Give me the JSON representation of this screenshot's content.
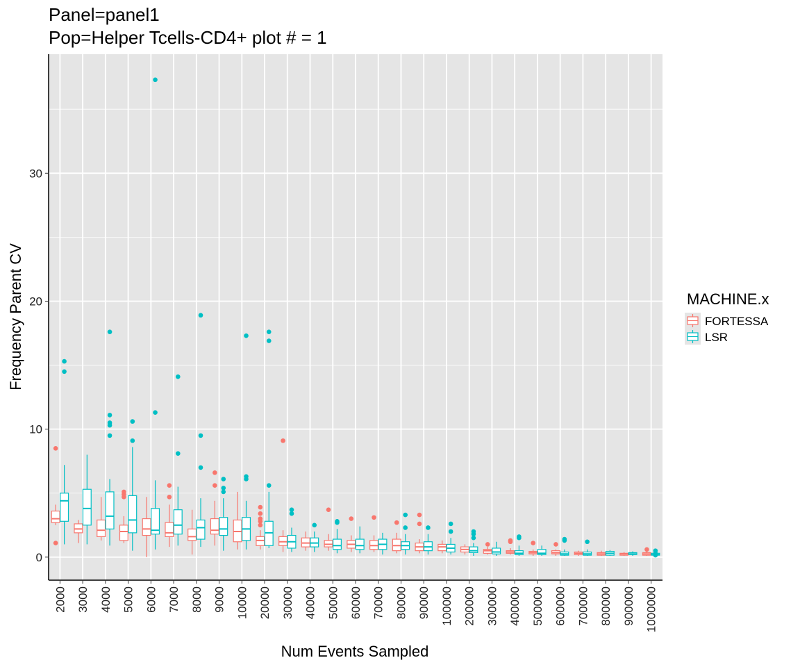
{
  "title_line1": "Panel=panel1",
  "title_line2": "Pop=Helper Tcells-CD4+ plot # = 1",
  "colors": {
    "panel_bg": "#e5e5e5",
    "grid": "#ffffff",
    "FORTESSA": "#f8766d",
    "LSR": "#00bfc4"
  },
  "chart_data": {
    "type": "box",
    "title": "Panel=panel1\nPop=Helper Tcells-CD4+ plot # = 1",
    "xlabel": "Num Events Sampled",
    "ylabel": "Frequency Parent CV",
    "ylim": [
      -1.8,
      39.3
    ],
    "yticks": [
      0,
      10,
      20,
      30
    ],
    "grid": true,
    "legend": {
      "title": "MACHINE.x",
      "position": "right",
      "entries": [
        "FORTESSA",
        "LSR"
      ]
    },
    "categories": [
      "2000",
      "3000",
      "4000",
      "5000",
      "6000",
      "7000",
      "8000",
      "9000",
      "10000",
      "20000",
      "30000",
      "40000",
      "50000",
      "60000",
      "70000",
      "80000",
      "90000",
      "100000",
      "200000",
      "300000",
      "400000",
      "500000",
      "600000",
      "700000",
      "800000",
      "900000",
      "1000000"
    ],
    "series": [
      {
        "name": "FORTESSA",
        "boxes": [
          {
            "lw": 2.5,
            "q1": 2.7,
            "med": 3.0,
            "q3": 3.6,
            "uw": 4.1,
            "out": [
              8.5,
              1.1
            ]
          },
          {
            "lw": 1.1,
            "q1": 1.9,
            "med": 2.2,
            "q3": 2.6,
            "uw": 2.9,
            "out": []
          },
          {
            "lw": 1.3,
            "q1": 1.6,
            "med": 2.1,
            "q3": 2.9,
            "uw": 4.7,
            "out": []
          },
          {
            "lw": 1.1,
            "q1": 1.3,
            "med": 2.0,
            "q3": 2.5,
            "uw": 3.2,
            "out": [
              4.7,
              4.9,
              5.1
            ]
          },
          {
            "lw": 0.0,
            "q1": 1.7,
            "med": 2.2,
            "q3": 3.0,
            "uw": 4.7,
            "out": []
          },
          {
            "lw": 0.8,
            "q1": 1.6,
            "med": 1.9,
            "q3": 2.7,
            "uw": 4.1,
            "out": [
              5.6,
              4.7
            ]
          },
          {
            "lw": 0.2,
            "q1": 1.3,
            "med": 1.6,
            "q3": 2.2,
            "uw": 3.7,
            "out": []
          },
          {
            "lw": 0.9,
            "q1": 1.8,
            "med": 2.1,
            "q3": 3.0,
            "uw": 4.4,
            "out": [
              5.6,
              6.6
            ]
          },
          {
            "lw": 0.6,
            "q1": 1.2,
            "med": 2.0,
            "q3": 2.9,
            "uw": 5.1,
            "out": []
          },
          {
            "lw": 0.6,
            "q1": 0.9,
            "med": 1.3,
            "q3": 1.6,
            "uw": 2.1,
            "out": [
              2.5,
              2.8,
              3.0,
              3.4,
              3.9
            ]
          },
          {
            "lw": 0.4,
            "q1": 0.9,
            "med": 1.2,
            "q3": 1.6,
            "uw": 2.1,
            "out": [
              9.1
            ]
          },
          {
            "lw": 0.5,
            "q1": 0.8,
            "med": 1.1,
            "q3": 1.5,
            "uw": 2.0,
            "out": []
          },
          {
            "lw": 0.5,
            "q1": 0.8,
            "med": 1.0,
            "q3": 1.3,
            "uw": 1.8,
            "out": [
              3.7
            ]
          },
          {
            "lw": 0.4,
            "q1": 0.7,
            "med": 1.0,
            "q3": 1.3,
            "uw": 1.7,
            "out": [
              3.0
            ]
          },
          {
            "lw": 0.4,
            "q1": 0.6,
            "med": 0.9,
            "q3": 1.3,
            "uw": 1.7,
            "out": [
              3.1
            ]
          },
          {
            "lw": 0.3,
            "q1": 0.5,
            "med": 0.9,
            "q3": 1.4,
            "uw": 1.9,
            "out": [
              2.7
            ]
          },
          {
            "lw": 0.3,
            "q1": 0.5,
            "med": 0.8,
            "q3": 1.1,
            "uw": 1.4,
            "out": [
              2.6,
              3.3
            ]
          },
          {
            "lw": 0.3,
            "q1": 0.5,
            "med": 0.8,
            "q3": 1.0,
            "uw": 1.3,
            "out": []
          },
          {
            "lw": 0.2,
            "q1": 0.4,
            "med": 0.6,
            "q3": 0.8,
            "uw": 1.0,
            "out": []
          },
          {
            "lw": 0.2,
            "q1": 0.3,
            "med": 0.5,
            "q3": 0.6,
            "uw": 0.8,
            "out": [
              1.0
            ]
          },
          {
            "lw": 0.2,
            "q1": 0.3,
            "med": 0.4,
            "q3": 0.5,
            "uw": 0.7,
            "out": [
              1.2,
              1.3
            ]
          },
          {
            "lw": 0.1,
            "q1": 0.25,
            "med": 0.35,
            "q3": 0.45,
            "uw": 0.6,
            "out": [
              1.1
            ]
          },
          {
            "lw": 0.1,
            "q1": 0.25,
            "med": 0.35,
            "q3": 0.5,
            "uw": 0.6,
            "out": [
              1.0
            ]
          },
          {
            "lw": 0.1,
            "q1": 0.2,
            "med": 0.3,
            "q3": 0.4,
            "uw": 0.5,
            "out": []
          },
          {
            "lw": 0.1,
            "q1": 0.15,
            "med": 0.25,
            "q3": 0.35,
            "uw": 0.5,
            "out": []
          },
          {
            "lw": 0.1,
            "q1": 0.15,
            "med": 0.25,
            "q3": 0.3,
            "uw": 0.4,
            "out": []
          },
          {
            "lw": 0.1,
            "q1": 0.15,
            "med": 0.25,
            "q3": 0.35,
            "uw": 0.45,
            "out": [
              0.6
            ]
          }
        ]
      },
      {
        "name": "LSR",
        "boxes": [
          {
            "lw": 1.0,
            "q1": 2.8,
            "med": 4.4,
            "q3": 5.0,
            "uw": 7.2,
            "out": [
              15.3,
              14.5
            ]
          },
          {
            "lw": 1.0,
            "q1": 2.5,
            "med": 3.8,
            "q3": 5.3,
            "uw": 8.0,
            "out": []
          },
          {
            "lw": 0.9,
            "q1": 2.2,
            "med": 3.2,
            "q3": 5.1,
            "uw": 6.1,
            "out": [
              17.6,
              11.1,
              10.5,
              10.3,
              9.5
            ]
          },
          {
            "lw": 0.5,
            "q1": 1.9,
            "med": 2.9,
            "q3": 4.8,
            "uw": 8.6,
            "out": [
              10.6,
              9.1
            ]
          },
          {
            "lw": 0.6,
            "q1": 1.8,
            "med": 2.1,
            "q3": 3.8,
            "uw": 6.0,
            "out": [
              37.3,
              11.3
            ]
          },
          {
            "lw": 0.9,
            "q1": 1.8,
            "med": 2.5,
            "q3": 3.7,
            "uw": 5.5,
            "out": [
              14.1,
              8.1
            ]
          },
          {
            "lw": 0.8,
            "q1": 1.4,
            "med": 2.3,
            "q3": 2.9,
            "uw": 4.6,
            "out": [
              18.9,
              9.5,
              7.0
            ]
          },
          {
            "lw": 0.5,
            "q1": 1.7,
            "med": 2.2,
            "q3": 3.1,
            "uw": 4.6,
            "out": [
              6.1,
              5.4,
              5.1
            ]
          },
          {
            "lw": 0.6,
            "q1": 1.3,
            "med": 2.2,
            "q3": 3.1,
            "uw": 4.4,
            "out": [
              17.3,
              6.3,
              6.1
            ]
          },
          {
            "lw": 0.7,
            "q1": 0.9,
            "med": 1.9,
            "q3": 2.8,
            "uw": 5.1,
            "out": [
              17.6,
              16.9,
              5.6
            ]
          },
          {
            "lw": 0.4,
            "q1": 0.7,
            "med": 1.2,
            "q3": 1.7,
            "uw": 2.3,
            "out": [
              3.7,
              3.4
            ]
          },
          {
            "lw": 0.4,
            "q1": 0.8,
            "med": 1.1,
            "q3": 1.5,
            "uw": 2.0,
            "out": [
              2.5
            ]
          },
          {
            "lw": 0.3,
            "q1": 0.6,
            "med": 0.9,
            "q3": 1.4,
            "uw": 2.2,
            "out": [
              2.8,
              2.7
            ]
          },
          {
            "lw": 0.3,
            "q1": 0.6,
            "med": 0.9,
            "q3": 1.4,
            "uw": 2.4,
            "out": []
          },
          {
            "lw": 0.2,
            "q1": 0.6,
            "med": 1.0,
            "q3": 1.4,
            "uw": 1.9,
            "out": []
          },
          {
            "lw": 0.2,
            "q1": 0.6,
            "med": 0.9,
            "q3": 1.2,
            "uw": 1.8,
            "out": [
              3.3,
              2.3
            ]
          },
          {
            "lw": 0.2,
            "q1": 0.5,
            "med": 0.8,
            "q3": 1.2,
            "uw": 1.8,
            "out": [
              2.3
            ]
          },
          {
            "lw": 0.2,
            "q1": 0.4,
            "med": 0.7,
            "q3": 1.0,
            "uw": 1.5,
            "out": [
              2.6,
              2.0
            ]
          },
          {
            "lw": 0.1,
            "q1": 0.35,
            "med": 0.5,
            "q3": 0.8,
            "uw": 1.1,
            "out": [
              2.0,
              1.8,
              1.5
            ]
          },
          {
            "lw": 0.1,
            "q1": 0.25,
            "med": 0.4,
            "q3": 0.7,
            "uw": 1.2,
            "out": []
          },
          {
            "lw": 0.1,
            "q1": 0.2,
            "med": 0.3,
            "q3": 0.5,
            "uw": 0.9,
            "out": [
              1.5,
              1.6
            ]
          },
          {
            "lw": 0.1,
            "q1": 0.2,
            "med": 0.3,
            "q3": 0.6,
            "uw": 0.9,
            "out": []
          },
          {
            "lw": 0.1,
            "q1": 0.15,
            "med": 0.25,
            "q3": 0.4,
            "uw": 0.6,
            "out": [
              1.4,
              1.3
            ]
          },
          {
            "lw": 0.1,
            "q1": 0.15,
            "med": 0.25,
            "q3": 0.4,
            "uw": 0.6,
            "out": [
              1.2
            ]
          },
          {
            "lw": 0.1,
            "q1": 0.15,
            "med": 0.3,
            "q3": 0.45,
            "uw": 0.55,
            "out": []
          },
          {
            "lw": 0.1,
            "q1": 0.2,
            "med": 0.25,
            "q3": 0.35,
            "uw": 0.45,
            "out": []
          },
          {
            "lw": 0.1,
            "q1": 0.15,
            "med": 0.2,
            "q3": 0.3,
            "uw": 0.4,
            "out": [
              0.5,
              0.3,
              0.15
            ]
          }
        ]
      }
    ]
  }
}
